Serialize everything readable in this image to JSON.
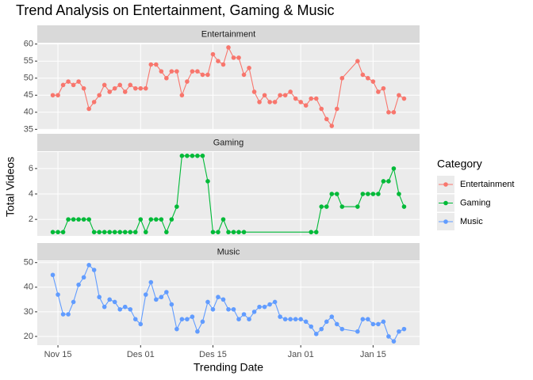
{
  "chart_data": {
    "type": "line",
    "facet": true,
    "title": "Trend Analysis on Entertainment, Gaming & Music",
    "x_label": "Trending Date",
    "y_label": "Total Videos",
    "legend_title": "Category",
    "legend": "right",
    "grid": true,
    "xlim": [
      "11-11",
      "01-24"
    ],
    "xticks": [
      {
        "value": "11-15",
        "label": "Nov 15"
      },
      {
        "value": "12-01",
        "label": "Des 01"
      },
      {
        "value": "12-15",
        "label": "Des 15"
      },
      {
        "value": "01-01",
        "label": "Jan 01"
      },
      {
        "value": "01-15",
        "label": "Jan 15"
      }
    ],
    "series": [
      {
        "name": "Entertainment",
        "color": "#f8766d",
        "ylim": [
          34.85,
          60.15
        ],
        "yticks": [
          35,
          40,
          45,
          50,
          55,
          60
        ],
        "x": [
          "11-14",
          "11-15",
          "11-16",
          "11-17",
          "11-18",
          "11-19",
          "11-20",
          "11-21",
          "11-22",
          "11-23",
          "11-24",
          "11-25",
          "11-26",
          "11-27",
          "11-28",
          "11-29",
          "11-30",
          "12-01",
          "12-02",
          "12-03",
          "12-04",
          "12-05",
          "12-06",
          "12-07",
          "12-08",
          "12-09",
          "12-10",
          "12-11",
          "12-12",
          "12-13",
          "12-14",
          "12-15",
          "12-16",
          "12-17",
          "12-18",
          "12-19",
          "12-20",
          "12-21",
          "12-22",
          "12-23",
          "12-24",
          "12-25",
          "12-26",
          "12-27",
          "12-28",
          "12-29",
          "12-30",
          "12-31",
          "01-01",
          "01-02",
          "01-03",
          "01-04",
          "01-05",
          "01-06",
          "01-07",
          "01-08",
          "01-09",
          "01-12",
          "01-13",
          "01-14",
          "01-15",
          "01-16",
          "01-17",
          "01-18",
          "01-19",
          "01-20",
          "01-21"
        ],
        "values": [
          45,
          45,
          48,
          49,
          48,
          49,
          47,
          41,
          43,
          45,
          48,
          46,
          47,
          48,
          46,
          48,
          47,
          47,
          47,
          54,
          54,
          52,
          50,
          52,
          52,
          45,
          49,
          52,
          52,
          51,
          51,
          57,
          55,
          54,
          59,
          56,
          56,
          51,
          53,
          46,
          43,
          45,
          43,
          43,
          45,
          45,
          46,
          44,
          43,
          42,
          44,
          44,
          41,
          38,
          36,
          41,
          50,
          55,
          51,
          50,
          49,
          46,
          47,
          40,
          40,
          45,
          44
        ]
      },
      {
        "name": "Gaming",
        "color": "#00ba38",
        "ylim": [
          0.7,
          7.3
        ],
        "yticks": [
          2,
          4,
          6
        ],
        "x": [
          "11-14",
          "11-15",
          "11-16",
          "11-17",
          "11-18",
          "11-19",
          "11-20",
          "11-21",
          "11-22",
          "11-23",
          "11-24",
          "11-25",
          "11-26",
          "11-27",
          "11-28",
          "11-29",
          "11-30",
          "12-01",
          "12-02",
          "12-03",
          "12-04",
          "12-05",
          "12-06",
          "12-07",
          "12-08",
          "12-09",
          "12-10",
          "12-11",
          "12-12",
          "12-13",
          "12-14",
          "12-15",
          "12-16",
          "12-17",
          "12-18",
          "12-19",
          "12-20",
          "12-21",
          "01-03",
          "01-04",
          "01-05",
          "01-06",
          "01-07",
          "01-08",
          "01-09",
          "01-12",
          "01-13",
          "01-14",
          "01-15",
          "01-16",
          "01-17",
          "01-18",
          "01-19",
          "01-20",
          "01-21"
        ],
        "values": [
          1,
          1,
          1,
          2,
          2,
          2,
          2,
          2,
          1,
          1,
          1,
          1,
          1,
          1,
          1,
          1,
          1,
          2,
          1,
          2,
          2,
          2,
          1,
          2,
          3,
          7,
          7,
          7,
          7,
          7,
          5,
          1,
          1,
          2,
          1,
          1,
          1,
          1,
          1,
          1,
          3,
          3,
          4,
          4,
          3,
          3,
          4,
          4,
          4,
          4,
          5,
          5,
          6,
          4,
          3
        ]
      },
      {
        "name": "Music",
        "color": "#619cff",
        "ylim": [
          16.45,
          50.55
        ],
        "yticks": [
          20,
          30,
          40,
          50
        ],
        "x": [
          "11-14",
          "11-15",
          "11-16",
          "11-17",
          "11-18",
          "11-19",
          "11-20",
          "11-21",
          "11-22",
          "11-23",
          "11-24",
          "11-25",
          "11-26",
          "11-27",
          "11-28",
          "11-29",
          "11-30",
          "12-01",
          "12-02",
          "12-03",
          "12-04",
          "12-05",
          "12-06",
          "12-07",
          "12-08",
          "12-09",
          "12-10",
          "12-11",
          "12-12",
          "12-13",
          "12-14",
          "12-15",
          "12-16",
          "12-17",
          "12-18",
          "12-19",
          "12-20",
          "12-21",
          "12-22",
          "12-23",
          "12-24",
          "12-25",
          "12-26",
          "12-27",
          "12-28",
          "12-29",
          "12-30",
          "12-31",
          "01-01",
          "01-02",
          "01-03",
          "01-04",
          "01-05",
          "01-06",
          "01-07",
          "01-08",
          "01-09",
          "01-12",
          "01-13",
          "01-14",
          "01-15",
          "01-16",
          "01-17",
          "01-18",
          "01-19",
          "01-20",
          "01-21"
        ],
        "values": [
          45,
          37,
          29,
          29,
          34,
          41,
          44,
          49,
          47,
          36,
          32,
          35,
          34,
          31,
          32,
          31,
          27,
          25,
          37,
          42,
          35,
          36,
          38,
          33,
          23,
          27,
          27,
          28,
          22,
          26,
          34,
          31,
          36,
          35,
          31,
          31,
          27,
          29,
          27,
          30,
          32,
          32,
          33,
          34,
          28,
          27,
          27,
          27,
          27,
          26,
          24,
          21,
          23,
          26,
          28,
          25,
          23,
          22,
          27,
          27,
          25,
          25,
          26,
          20,
          18,
          22,
          23
        ]
      }
    ]
  }
}
